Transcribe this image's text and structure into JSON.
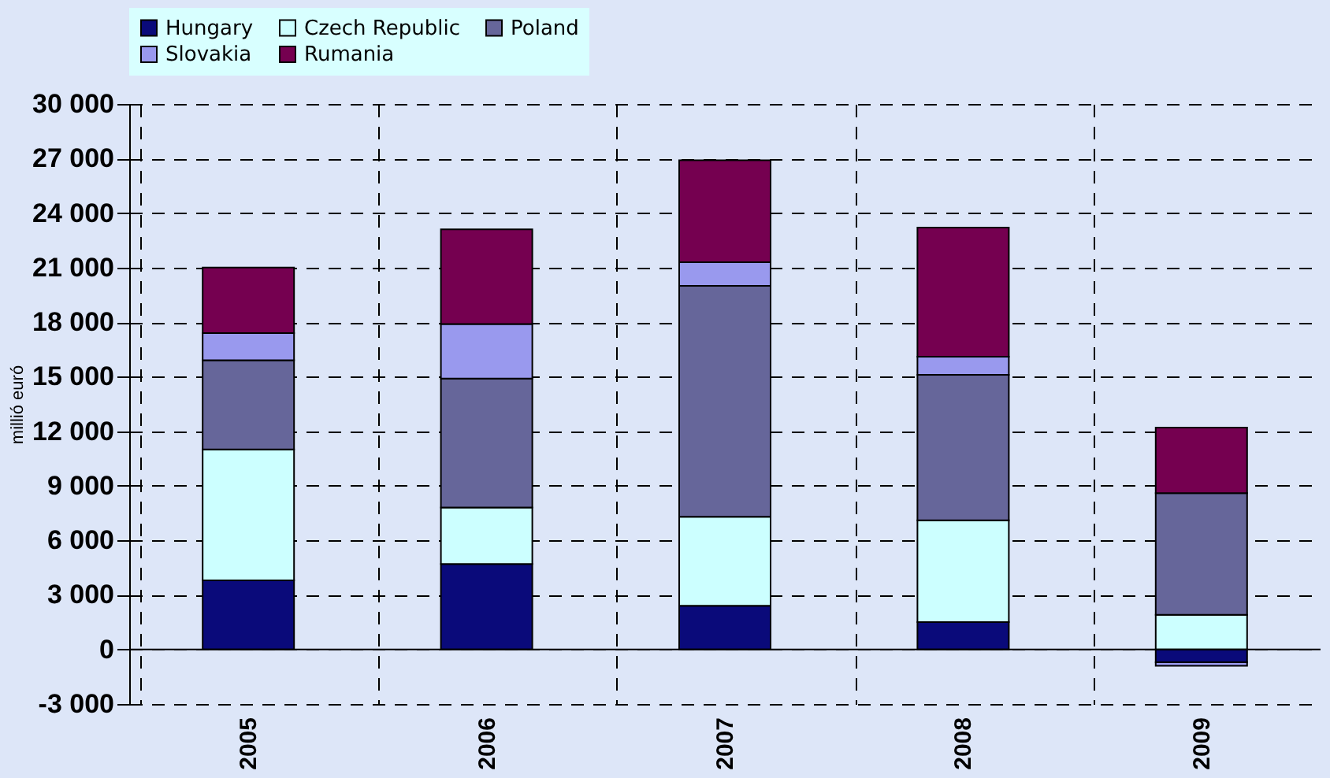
{
  "chart_data": {
    "type": "bar",
    "stacked": true,
    "ylabel": "millió euró",
    "categories": [
      "2005",
      "2006",
      "2007",
      "2008",
      "2009"
    ],
    "series": [
      {
        "name": "Hungary",
        "color": "#0a0a7a",
        "values": [
          3800,
          4700,
          2400,
          1500,
          -700
        ]
      },
      {
        "name": "Czech Republic",
        "color": "#ccffff",
        "values": [
          7200,
          3100,
          4900,
          5600,
          1900
        ]
      },
      {
        "name": "Poland",
        "color": "#66669a",
        "values": [
          4900,
          7100,
          12700,
          8000,
          6700
        ]
      },
      {
        "name": "Slovakia",
        "color": "#9999ee",
        "values": [
          1500,
          3000,
          1300,
          1000,
          -200
        ]
      },
      {
        "name": "Rumania",
        "color": "#750050",
        "values": [
          3600,
          5200,
          5600,
          7100,
          3600
        ]
      }
    ],
    "ylim": [
      -3000,
      30000
    ],
    "yticks": [
      {
        "value": -3000,
        "label": "-3 000"
      },
      0,
      {
        "value": 3000,
        "label": "3 000"
      },
      {
        "value": 6000,
        "label": "6 000"
      },
      {
        "value": 9000,
        "label": "9 000"
      },
      {
        "value": 12000,
        "label": "12 000"
      },
      {
        "value": 15000,
        "label": "15 000"
      },
      {
        "value": 18000,
        "label": "18 000"
      },
      {
        "value": 21000,
        "label": "21 000"
      },
      {
        "value": 24000,
        "label": "24 000"
      },
      {
        "value": 27000,
        "label": "27 000"
      },
      {
        "value": 30000,
        "label": "30 000"
      }
    ],
    "grid": true,
    "legend": "top"
  }
}
